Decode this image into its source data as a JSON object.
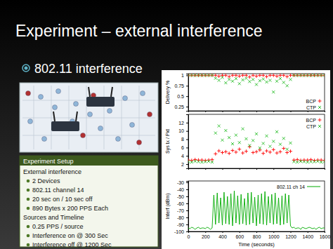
{
  "slide": {
    "title": "Experiment – external interference",
    "bullet": "802.11 interference",
    "setup": {
      "header": "Experiment Setup",
      "sections": [
        {
          "heading": "External interference",
          "items": [
            "2 Devices",
            "802.11 channel 14",
            "20 sec on / 10 sec off",
            "890 Bytes x 200 PPS Each"
          ]
        },
        {
          "heading": "Sources and Timeline",
          "items": [
            "0.25 PPS / source",
            "Interference on @ 300 Sec",
            "Interference off @ 1200 Sec"
          ]
        }
      ]
    }
  },
  "chart_data": [
    {
      "type": "scatter",
      "ylabel": "Delivery %",
      "x": [
        0,
        40,
        80,
        120,
        160,
        200,
        240,
        280,
        320,
        360,
        400,
        440,
        480,
        520,
        560,
        600,
        640,
        680,
        720,
        760,
        800,
        840,
        880,
        920,
        960,
        1000,
        1040,
        1080,
        1120,
        1160,
        1200,
        1240,
        1280,
        1320,
        1360,
        1400,
        1440,
        1480,
        1520,
        1560,
        1600
      ],
      "xlim": [
        0,
        1600
      ],
      "xticks": [
        0,
        200,
        400,
        600,
        800,
        1000,
        1200,
        1400,
        1600
      ],
      "ylim": [
        0.15,
        1.04
      ],
      "yticks": [
        0.25,
        0.5,
        0.75,
        1
      ],
      "tick_labels": "y",
      "legend": "lower right",
      "series": [
        {
          "name": "BCP",
          "color": "#ff0000",
          "marker": "plus",
          "values": [
            1,
            1,
            1,
            1,
            1,
            1,
            1,
            1,
            1,
            0.98,
            1,
            1,
            0.97,
            1,
            1,
            0.98,
            1,
            1,
            0.96,
            1,
            0.98,
            1,
            1,
            0.97,
            1,
            1,
            0.98,
            1,
            1,
            0.97,
            1,
            1,
            1,
            1,
            1,
            1,
            1,
            1,
            1,
            1,
            1
          ]
        },
        {
          "name": "CTP",
          "color": "#22bb22",
          "marker": "cross",
          "values": [
            1,
            1,
            1,
            1,
            1,
            1,
            1,
            1,
            0.93,
            0.88,
            0.95,
            0.82,
            0.9,
            0.86,
            0.92,
            0.8,
            0.89,
            0.93,
            0.85,
            0.9,
            0.78,
            0.87,
            0.91,
            0.84,
            0.88,
            0.6,
            0.86,
            0.92,
            0.83,
            0.75,
            0.9,
            1,
            1,
            1,
            1,
            1,
            1,
            1,
            1,
            1,
            1
          ]
        }
      ]
    },
    {
      "type": "scatter",
      "ylabel": "Sys tx / Pkt",
      "x": [
        0,
        40,
        80,
        120,
        160,
        200,
        240,
        280,
        320,
        360,
        400,
        440,
        480,
        520,
        560,
        600,
        640,
        680,
        720,
        760,
        800,
        840,
        880,
        920,
        960,
        1000,
        1040,
        1080,
        1120,
        1160,
        1200,
        1240,
        1280,
        1320,
        1360,
        1400,
        1440,
        1480,
        1520,
        1560,
        1600
      ],
      "xlim": [
        0,
        1600
      ],
      "xticks": [
        0,
        200,
        400,
        600,
        800,
        1000,
        1200,
        1400,
        1600
      ],
      "ylim": [
        1,
        14
      ],
      "yticks": [
        2,
        4,
        6,
        8,
        10,
        12
      ],
      "tick_labels": "y",
      "legend": "upper right",
      "series": [
        {
          "name": "BCP",
          "color": "#ff0000",
          "marker": "plus",
          "values": [
            3,
            2.9,
            3.1,
            3,
            3,
            2.9,
            3,
            3.1,
            4.5,
            5.2,
            4.8,
            5,
            4.6,
            5.3,
            4.9,
            5.6,
            4.7,
            5.1,
            6.2,
            4.8,
            5,
            5.4,
            4.6,
            5.2,
            4.9,
            5.5,
            4.7,
            5,
            5.8,
            4.8,
            5.1,
            3,
            3.1,
            2.9,
            3,
            3,
            3.1,
            2.9,
            3,
            3,
            2.9
          ]
        },
        {
          "name": "CTP",
          "color": "#22bb22",
          "marker": "cross",
          "values": [
            2.6,
            2.5,
            2.7,
            2.6,
            2.5,
            2.6,
            2.7,
            2.5,
            9.5,
            11.2,
            7.8,
            10.1,
            8.4,
            6.9,
            9,
            7.2,
            10.5,
            8.1,
            6.5,
            7.7,
            9.3,
            5.9,
            7,
            8.8,
            6.3,
            7.5,
            9.8,
            6.8,
            8.2,
            5.6,
            7.1,
            2.6,
            2.5,
            2.7,
            2.6,
            2.5,
            2.6,
            2.6,
            2.7,
            2.5,
            2.6
          ]
        }
      ]
    },
    {
      "type": "line",
      "xlabel": "Time (seconds)",
      "ylabel": "Interf (dBm)",
      "x": [
        0,
        20,
        40,
        60,
        80,
        100,
        120,
        140,
        160,
        180,
        200,
        220,
        240,
        260,
        280,
        300,
        320,
        340,
        360,
        380,
        400,
        420,
        440,
        460,
        480,
        500,
        520,
        540,
        560,
        580,
        600,
        620,
        640,
        660,
        680,
        700,
        720,
        740,
        760,
        780,
        800,
        820,
        840,
        860,
        880,
        900,
        920,
        940,
        960,
        980,
        1000,
        1020,
        1040,
        1060,
        1080,
        1100,
        1120,
        1140,
        1160,
        1180,
        1200,
        1220,
        1240,
        1260,
        1280,
        1300,
        1320,
        1340,
        1360,
        1380,
        1400,
        1420,
        1440,
        1460,
        1480,
        1500,
        1520,
        1540,
        1560,
        1580,
        1600
      ],
      "xlim": [
        0,
        1600
      ],
      "xticks": [
        0,
        200,
        400,
        600,
        800,
        1000,
        1200,
        1400,
        1600
      ],
      "ylim": [
        -100,
        -28
      ],
      "yticks": [
        -100,
        -90,
        -80,
        -70,
        -60,
        -50,
        -40,
        -30
      ],
      "legend": "upper right",
      "series": [
        {
          "name": "802.11 ch 14",
          "color": "#00aa00",
          "values": [
            -95,
            -96,
            -94,
            -95,
            -97,
            -95,
            -94,
            -96,
            -95,
            -95,
            -96,
            -94,
            -95,
            -97,
            -95,
            -48,
            -90,
            -45,
            -88,
            -52,
            -91,
            -44,
            -89,
            -50,
            -90,
            -46,
            -92,
            -42,
            -88,
            -49,
            -90,
            -47,
            -89,
            -53,
            -91,
            -45,
            -90,
            -44,
            -88,
            -51,
            -92,
            -48,
            -89,
            -46,
            -90,
            -43,
            -91,
            -50,
            -88,
            -47,
            -90,
            -45,
            -89,
            -52,
            -91,
            -49,
            -90,
            -46,
            -88,
            -48,
            -92,
            -95,
            -94,
            -96,
            -95,
            -95,
            -97,
            -94,
            -95,
            -96,
            -95,
            -94,
            -95,
            -96,
            -95,
            -97,
            -95,
            -94,
            -96,
            -95,
            -95
          ]
        }
      ]
    }
  ]
}
